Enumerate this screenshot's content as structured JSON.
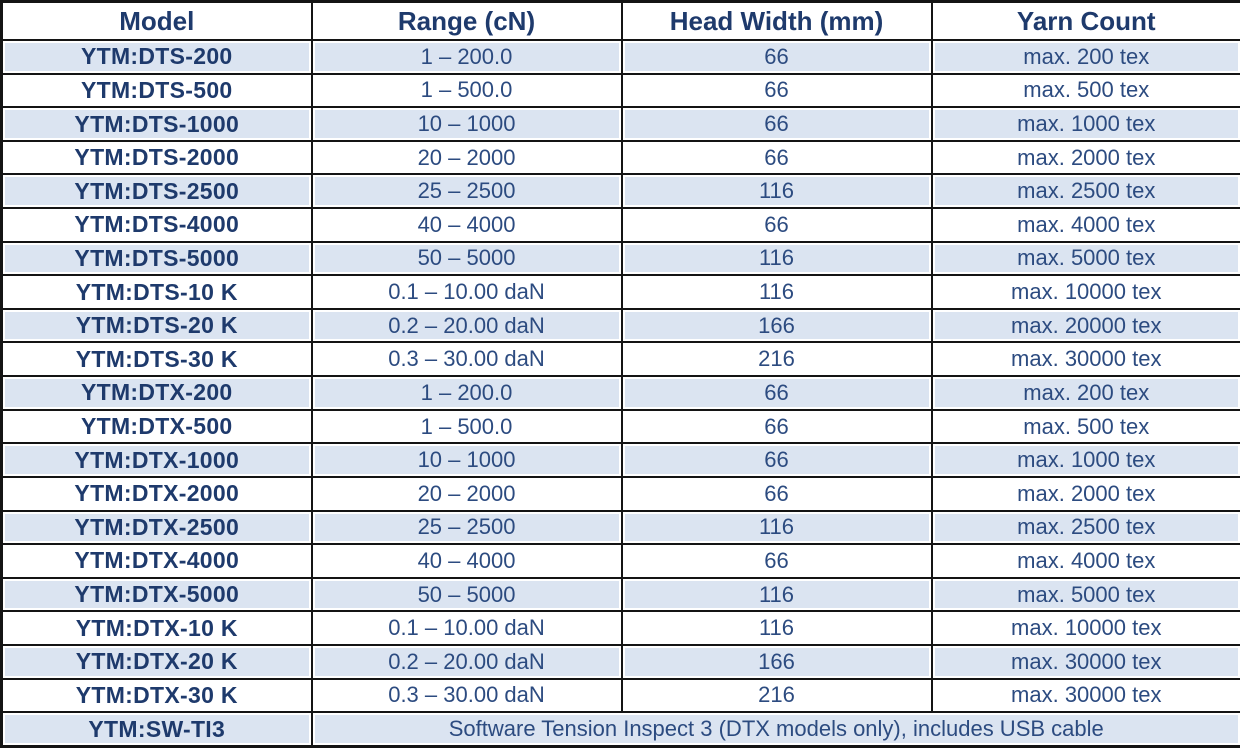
{
  "table": {
    "columns": [
      "Model",
      "Range (cN)",
      "Head Width (mm)",
      "Yarn Count"
    ],
    "rows": [
      {
        "model": "YTM:DTS-200",
        "range": "1 – 200.0",
        "head_width": "66",
        "yarn_count": "max. 200 tex"
      },
      {
        "model": "YTM:DTS-500",
        "range": "1 – 500.0",
        "head_width": "66",
        "yarn_count": "max. 500 tex"
      },
      {
        "model": "YTM:DTS-1000",
        "range": "10 – 1000",
        "head_width": "66",
        "yarn_count": "max. 1000 tex"
      },
      {
        "model": "YTM:DTS-2000",
        "range": "20 – 2000",
        "head_width": "66",
        "yarn_count": "max. 2000 tex"
      },
      {
        "model": "YTM:DTS-2500",
        "range": "25 – 2500",
        "head_width": "116",
        "yarn_count": "max. 2500 tex"
      },
      {
        "model": "YTM:DTS-4000",
        "range": "40 – 4000",
        "head_width": "66",
        "yarn_count": "max. 4000 tex"
      },
      {
        "model": "YTM:DTS-5000",
        "range": "50 – 5000",
        "head_width": "116",
        "yarn_count": "max. 5000 tex"
      },
      {
        "model": "YTM:DTS-10 K",
        "range": "0.1 – 10.00 daN",
        "head_width": "116",
        "yarn_count": "max. 10000 tex"
      },
      {
        "model": "YTM:DTS-20 K",
        "range": "0.2 – 20.00 daN",
        "head_width": "166",
        "yarn_count": "max. 20000 tex"
      },
      {
        "model": "YTM:DTS-30 K",
        "range": "0.3 – 30.00 daN",
        "head_width": "216",
        "yarn_count": "max. 30000 tex"
      },
      {
        "model": "YTM:DTX-200",
        "range": "1 – 200.0",
        "head_width": "66",
        "yarn_count": "max. 200 tex"
      },
      {
        "model": "YTM:DTX-500",
        "range": "1 – 500.0",
        "head_width": "66",
        "yarn_count": "max. 500 tex"
      },
      {
        "model": "YTM:DTX-1000",
        "range": "10 – 1000",
        "head_width": "66",
        "yarn_count": "max. 1000 tex"
      },
      {
        "model": "YTM:DTX-2000",
        "range": "20 – 2000",
        "head_width": "66",
        "yarn_count": "max. 2000 tex"
      },
      {
        "model": "YTM:DTX-2500",
        "range": "25 – 2500",
        "head_width": "116",
        "yarn_count": "max. 2500 tex"
      },
      {
        "model": "YTM:DTX-4000",
        "range": "40 – 4000",
        "head_width": "66",
        "yarn_count": "max. 4000 tex"
      },
      {
        "model": "YTM:DTX-5000",
        "range": "50 – 5000",
        "head_width": "116",
        "yarn_count": "max. 5000 tex"
      },
      {
        "model": "YTM:DTX-10 K",
        "range": "0.1 – 10.00 daN",
        "head_width": "116",
        "yarn_count": "max. 10000 tex"
      },
      {
        "model": "YTM:DTX-20 K",
        "range": "0.2 – 20.00 daN",
        "head_width": "166",
        "yarn_count": "max. 30000 tex"
      },
      {
        "model": "YTM:DTX-30 K",
        "range": "0.3 – 30.00 daN",
        "head_width": "216",
        "yarn_count": "max. 30000 tex"
      }
    ],
    "software_row": {
      "model": "YTM:SW-TI3",
      "description": "Software Tension Inspect 3 (DTX models only), includes USB cable"
    }
  },
  "colors": {
    "header_text": "#1e3a6c",
    "value_text": "#2c4b80",
    "row_alt_blue": "#dbe4f1",
    "border": "#141414",
    "background": "#ffffff"
  }
}
